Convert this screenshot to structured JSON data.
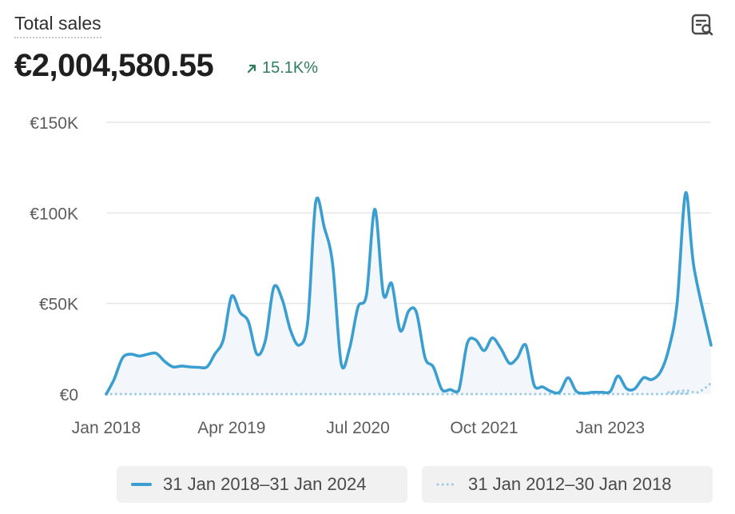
{
  "header": {
    "title": "Total sales",
    "total": "€2,004,580.55",
    "change": "15.1K%",
    "report_icon": "report-search-icon",
    "change_icon": "arrow-up-right-icon"
  },
  "colors": {
    "primary_line": "#3a9fd0",
    "comparison_line": "#9ccbe6",
    "area_fill": "#f3f6fa",
    "positive_change": "#2f7d5c",
    "grid": "#e6e6e6",
    "tick_text": "#5c5c5c"
  },
  "chart_data": {
    "type": "line",
    "ylim": [
      0,
      150000
    ],
    "y_ticks": [
      {
        "value": 0,
        "label": "€0"
      },
      {
        "value": 50000,
        "label": "€50K"
      },
      {
        "value": 100000,
        "label": "€100K"
      },
      {
        "value": 150000,
        "label": "€150K"
      }
    ],
    "x_range": [
      "2018-01-31",
      "2024-01-31"
    ],
    "x_ticks": [
      {
        "date": "2018-01-31",
        "label": "Jan 2018"
      },
      {
        "date": "2019-04-30",
        "label": "Apr 2019"
      },
      {
        "date": "2020-07-31",
        "label": "Jul 2020"
      },
      {
        "date": "2021-10-31",
        "label": "Oct 2021"
      },
      {
        "date": "2023-01-31",
        "label": "Jan 2023"
      }
    ],
    "grid": true,
    "legend_position": "bottom",
    "series": [
      {
        "name": "31 Jan 2018–31 Jan 2024",
        "style": "solid",
        "points": [
          [
            "2018-01-31",
            0
          ],
          [
            "2018-02-28",
            8000
          ],
          [
            "2018-03-31",
            20000
          ],
          [
            "2018-04-30",
            22000
          ],
          [
            "2018-05-31",
            21000
          ],
          [
            "2018-06-30",
            22000
          ],
          [
            "2018-07-31",
            22500
          ],
          [
            "2018-08-31",
            18000
          ],
          [
            "2018-09-30",
            15000
          ],
          [
            "2018-10-31",
            15500
          ],
          [
            "2018-11-30",
            15000
          ],
          [
            "2018-12-31",
            14800
          ],
          [
            "2019-01-31",
            15000
          ],
          [
            "2019-02-28",
            22000
          ],
          [
            "2019-03-31",
            30000
          ],
          [
            "2019-04-30",
            54000
          ],
          [
            "2019-05-31",
            45000
          ],
          [
            "2019-06-30",
            40000
          ],
          [
            "2019-07-31",
            22000
          ],
          [
            "2019-08-31",
            30000
          ],
          [
            "2019-09-30",
            59000
          ],
          [
            "2019-10-31",
            52000
          ],
          [
            "2019-11-30",
            35000
          ],
          [
            "2019-12-31",
            27000
          ],
          [
            "2020-01-31",
            40000
          ],
          [
            "2020-02-29",
            106000
          ],
          [
            "2020-03-31",
            92000
          ],
          [
            "2020-04-30",
            72000
          ],
          [
            "2020-05-31",
            17000
          ],
          [
            "2020-06-30",
            25000
          ],
          [
            "2020-07-31",
            48000
          ],
          [
            "2020-08-31",
            55000
          ],
          [
            "2020-09-30",
            102000
          ],
          [
            "2020-10-31",
            55000
          ],
          [
            "2020-11-30",
            61000
          ],
          [
            "2020-12-31",
            35000
          ],
          [
            "2021-01-31",
            46000
          ],
          [
            "2021-02-28",
            45000
          ],
          [
            "2021-03-31",
            20000
          ],
          [
            "2021-04-30",
            15000
          ],
          [
            "2021-05-31",
            2500
          ],
          [
            "2021-06-30",
            2500
          ],
          [
            "2021-07-31",
            2000
          ],
          [
            "2021-08-31",
            28000
          ],
          [
            "2021-09-30",
            30000
          ],
          [
            "2021-10-31",
            24000
          ],
          [
            "2021-11-30",
            31000
          ],
          [
            "2021-12-31",
            25000
          ],
          [
            "2022-01-31",
            17000
          ],
          [
            "2022-02-28",
            20000
          ],
          [
            "2022-03-31",
            27000
          ],
          [
            "2022-04-30",
            5000
          ],
          [
            "2022-05-31",
            4000
          ],
          [
            "2022-06-30",
            1500
          ],
          [
            "2022-07-31",
            1000
          ],
          [
            "2022-08-31",
            9000
          ],
          [
            "2022-09-30",
            1500
          ],
          [
            "2022-10-31",
            500
          ],
          [
            "2022-11-30",
            1000
          ],
          [
            "2022-12-31",
            1000
          ],
          [
            "2023-01-31",
            1500
          ],
          [
            "2023-02-28",
            10000
          ],
          [
            "2023-03-31",
            3000
          ],
          [
            "2023-04-30",
            3000
          ],
          [
            "2023-05-31",
            9000
          ],
          [
            "2023-06-30",
            8000
          ],
          [
            "2023-07-31",
            12000
          ],
          [
            "2023-08-31",
            25000
          ],
          [
            "2023-09-30",
            50000
          ],
          [
            "2023-10-31",
            111000
          ],
          [
            "2023-11-30",
            70000
          ],
          [
            "2024-01-31",
            27000
          ]
        ]
      },
      {
        "name": "31 Jan 2012–30 Jan 2018",
        "style": "dotted",
        "points": [
          [
            "2018-01-31",
            0
          ],
          [
            "2023-05-31",
            0
          ],
          [
            "2023-08-31",
            1000
          ],
          [
            "2023-10-31",
            2000
          ],
          [
            "2023-12-15",
            1000
          ],
          [
            "2024-01-31",
            6000
          ]
        ]
      }
    ]
  }
}
